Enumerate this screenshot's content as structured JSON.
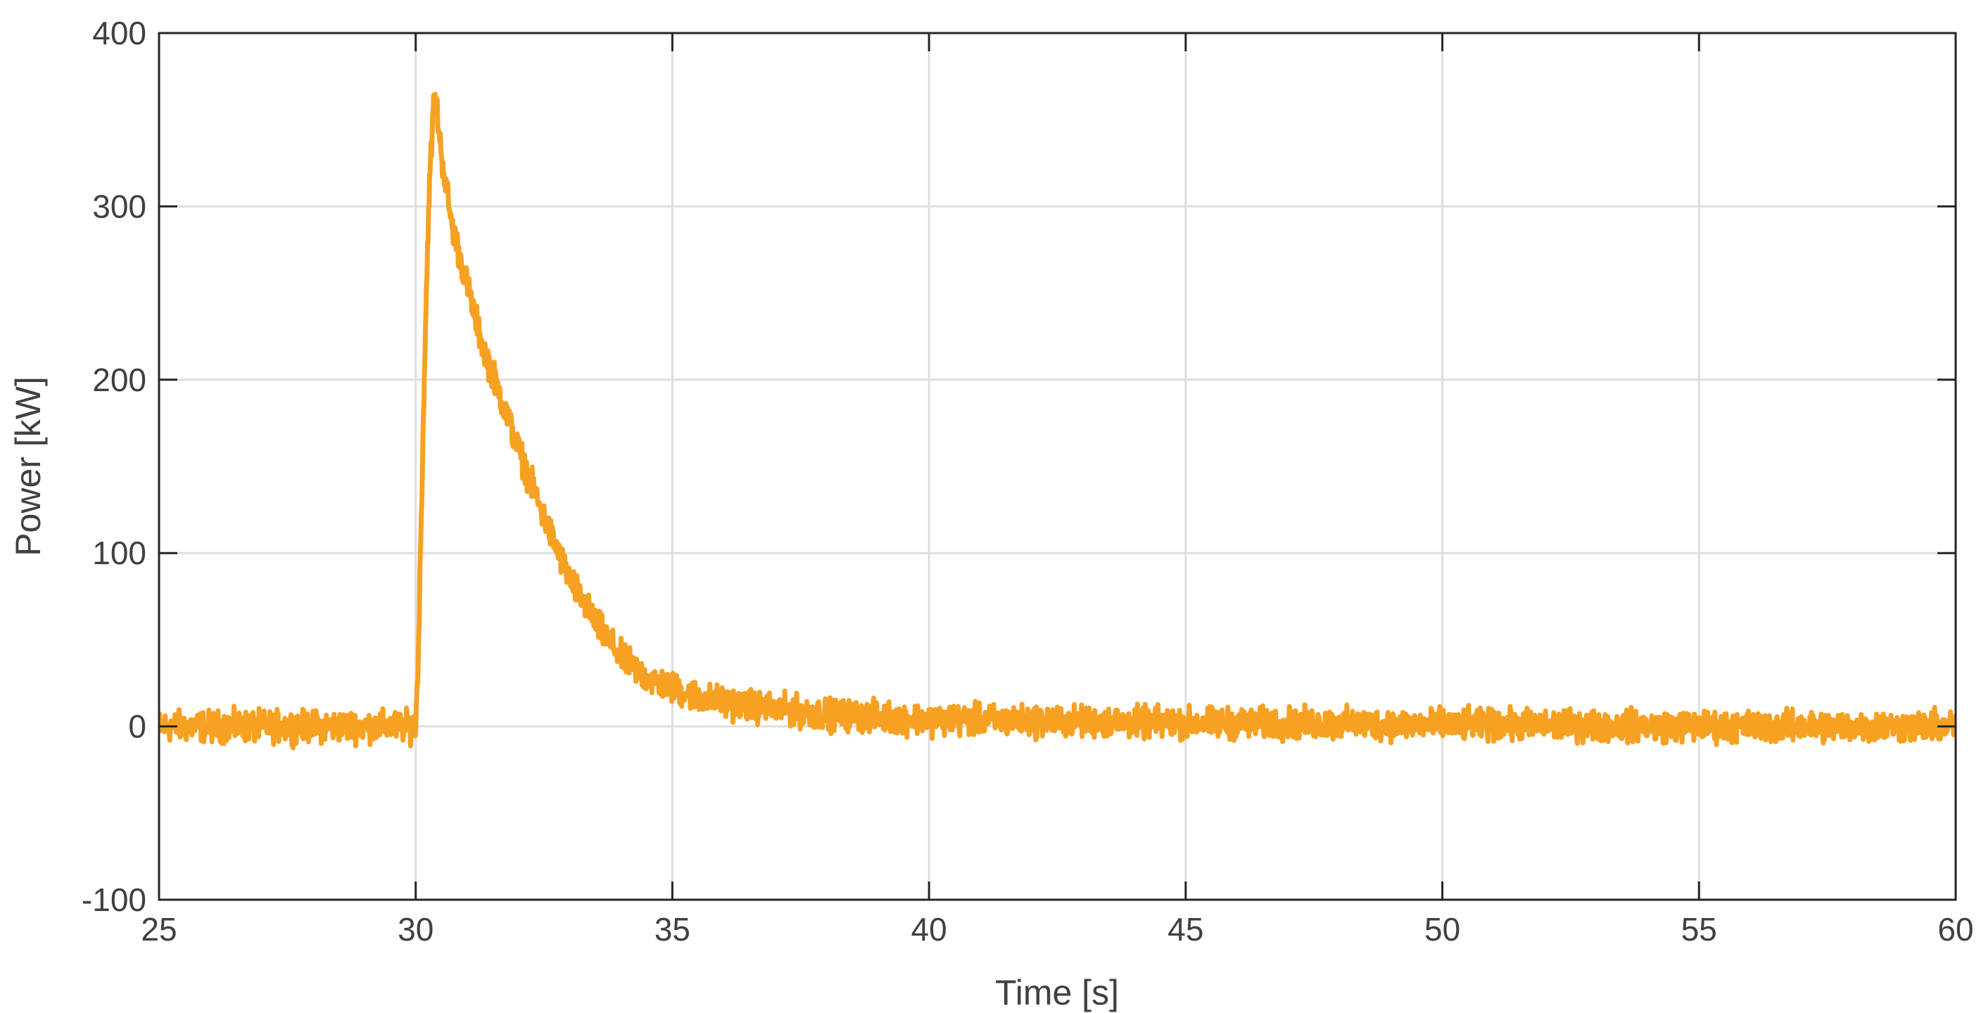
{
  "chart_data": {
    "type": "line",
    "title": "",
    "xlabel": "Time [s]",
    "ylabel": "Power [kW]",
    "xlim": [
      25,
      60
    ],
    "ylim": [
      -100,
      400
    ],
    "xticks": [
      25,
      30,
      35,
      40,
      45,
      50,
      55,
      60
    ],
    "yticks": [
      -100,
      0,
      100,
      200,
      300,
      400
    ],
    "xtick_labels": [
      "25",
      "30",
      "35",
      "40",
      "45",
      "50",
      "55",
      "60"
    ],
    "ytick_labels": [
      "-100",
      "0",
      "100",
      "200",
      "300",
      "400"
    ],
    "grid": true,
    "legend": "none",
    "series": [
      {
        "color": "#f7a122",
        "noise_amplitude": 10,
        "x": [
          25,
          30,
          30.05,
          30.15,
          30.25,
          30.35,
          30.4,
          30.5,
          30.7,
          31.0,
          31.3,
          31.6,
          32.0,
          32.5,
          33.0,
          33.5,
          34.0,
          34.5,
          35.0,
          35.5,
          36.0,
          37.0,
          38.0,
          40.0,
          45.0,
          50.0,
          55.0,
          60.0
        ],
        "y": [
          0,
          0,
          40,
          180,
          300,
          360,
          360,
          330,
          290,
          255,
          220,
          195,
          160,
          120,
          85,
          60,
          40,
          28,
          22,
          17,
          14,
          10,
          7,
          4,
          2,
          1,
          0,
          0
        ]
      }
    ]
  }
}
